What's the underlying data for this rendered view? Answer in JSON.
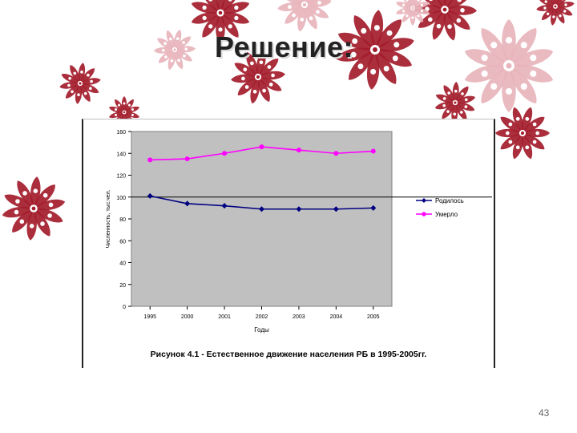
{
  "slide": {
    "title": "Решение:",
    "page_number": "43"
  },
  "colors": {
    "flower_dark": "#a31c2b",
    "flower_light": "#e8b4bc",
    "plot_bg": "#c0c0c0",
    "born_series": "#000080",
    "died_series": "#ff00ff"
  },
  "chart_data": {
    "type": "line",
    "title": "Рисунок 4.1 - Естественное движение населения РБ в 1995-2005гг.",
    "xlabel": "Годы",
    "ylabel": "Численность, тыс.чел.",
    "categories": [
      "1995",
      "2000",
      "2001",
      "2002",
      "2003",
      "2004",
      "2005"
    ],
    "ylim": [
      0,
      160
    ],
    "yticks": [
      0,
      20,
      40,
      60,
      80,
      100,
      120,
      140,
      160
    ],
    "reference_line": 100,
    "grid": false,
    "legend_position": "right",
    "series": [
      {
        "name": "Родилось",
        "marker": "diamond",
        "color": "#000080",
        "values": [
          101,
          94,
          92,
          89,
          89,
          89,
          90
        ]
      },
      {
        "name": "Умерло",
        "marker": "circle",
        "color": "#ff00ff",
        "values": [
          134,
          135,
          140,
          146,
          143,
          140,
          142
        ]
      }
    ]
  }
}
